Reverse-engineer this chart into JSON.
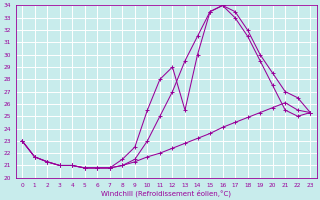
{
  "xlabel": "Windchill (Refroidissement éolien,°C)",
  "xlim": [
    -0.5,
    23.5
  ],
  "ylim": [
    20,
    34
  ],
  "xticks": [
    0,
    1,
    2,
    3,
    4,
    5,
    6,
    7,
    8,
    9,
    10,
    11,
    12,
    13,
    14,
    15,
    16,
    17,
    18,
    19,
    20,
    21,
    22,
    23
  ],
  "yticks": [
    20,
    21,
    22,
    23,
    24,
    25,
    26,
    27,
    28,
    29,
    30,
    31,
    32,
    33,
    34
  ],
  "background_color": "#c8ecec",
  "grid_color": "#b0d0d0",
  "line_color": "#990099",
  "curve1_x": [
    0,
    1,
    2,
    3,
    4,
    5,
    6,
    7,
    8,
    9,
    10,
    11,
    12,
    13,
    14,
    15,
    16,
    17,
    18,
    19,
    20,
    21,
    22,
    23
  ],
  "curve1_y": [
    23.0,
    21.7,
    21.3,
    21.0,
    21.0,
    20.8,
    20.8,
    20.8,
    21.5,
    22.5,
    25.5,
    28.0,
    29.0,
    25.5,
    30.0,
    33.5,
    34.0,
    33.0,
    31.5,
    29.5,
    27.5,
    25.5,
    25.0,
    25.3
  ],
  "curve2_x": [
    0,
    1,
    2,
    3,
    4,
    5,
    6,
    7,
    8,
    9,
    10,
    11,
    12,
    13,
    14,
    15,
    16,
    17,
    18,
    19,
    20,
    21,
    22,
    23
  ],
  "curve2_y": [
    23.0,
    21.7,
    21.3,
    21.0,
    21.0,
    20.8,
    20.8,
    20.8,
    21.0,
    21.5,
    23.0,
    25.0,
    27.0,
    29.5,
    31.5,
    33.5,
    34.0,
    33.5,
    32.0,
    30.0,
    28.5,
    27.0,
    26.5,
    25.3
  ],
  "curve3_x": [
    0,
    1,
    2,
    3,
    4,
    5,
    6,
    7,
    8,
    9,
    10,
    11,
    12,
    13,
    14,
    15,
    16,
    17,
    18,
    19,
    20,
    21,
    22,
    23
  ],
  "curve3_y": [
    23.0,
    21.7,
    21.3,
    21.0,
    21.0,
    20.8,
    20.8,
    20.8,
    21.0,
    21.3,
    21.7,
    22.0,
    22.4,
    22.8,
    23.2,
    23.6,
    24.1,
    24.5,
    24.9,
    25.3,
    25.7,
    26.1,
    25.5,
    25.3
  ]
}
